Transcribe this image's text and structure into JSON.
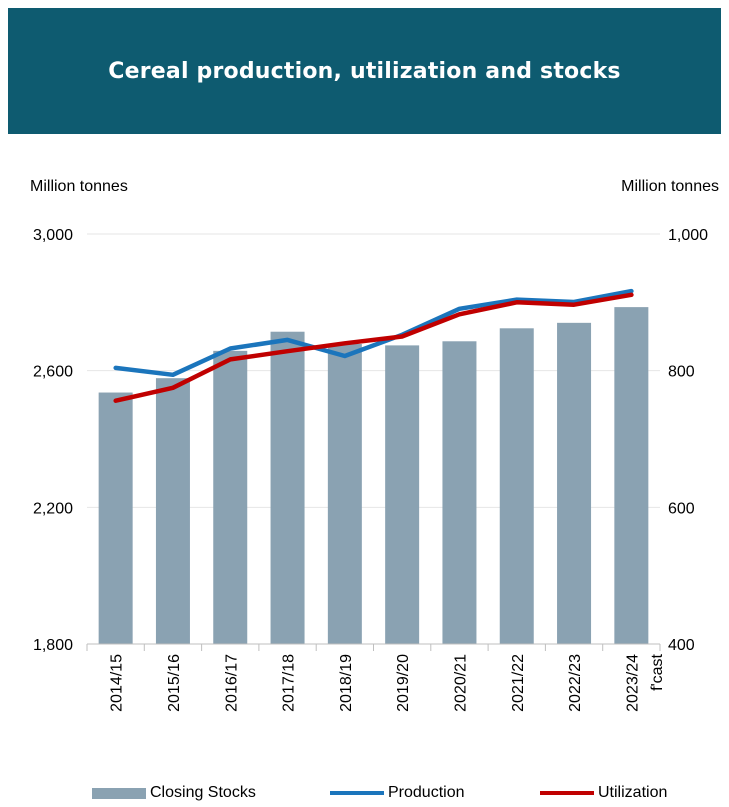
{
  "chart_data": {
    "type": "bar+line",
    "title": "Cereal production, utilization and stocks",
    "left_axis_label": "Million tonnes",
    "right_axis_label": "Million tonnes",
    "left_axis": {
      "min": 1800,
      "max": 3000,
      "ticks": [
        1800,
        2200,
        2600,
        3000
      ],
      "tick_labels": [
        "1,800",
        "2,200",
        "2,600",
        "3,000"
      ]
    },
    "right_axis": {
      "min": 400,
      "max": 1000,
      "ticks": [
        400,
        600,
        800,
        1000
      ],
      "tick_labels": [
        "400",
        "600",
        "800",
        "1,000"
      ]
    },
    "categories": [
      "2014/15",
      "2015/16",
      "2016/17",
      "2017/18",
      "2018/19",
      "2019/20",
      "2020/21",
      "2021/22",
      "2022/23",
      "2023/24"
    ],
    "forecast_label": "f'cast",
    "grid": true,
    "legend_placement": "bottom",
    "series": [
      {
        "name": "Closing Stocks",
        "type": "bar",
        "axis": "right",
        "color": "#8aa2b2",
        "values": [
          768,
          789,
          829,
          857,
          839,
          837,
          843,
          862,
          870,
          893
        ]
      },
      {
        "name": "Production",
        "type": "line",
        "axis": "left",
        "color": "#1b75bc",
        "values": [
          2608,
          2588,
          2665,
          2690,
          2643,
          2705,
          2781,
          2808,
          2801,
          2833
        ]
      },
      {
        "name": "Utilization",
        "type": "line",
        "axis": "left",
        "color": "#c00000",
        "values": [
          2512,
          2550,
          2633,
          2657,
          2680,
          2700,
          2765,
          2800,
          2793,
          2822
        ]
      }
    ]
  }
}
